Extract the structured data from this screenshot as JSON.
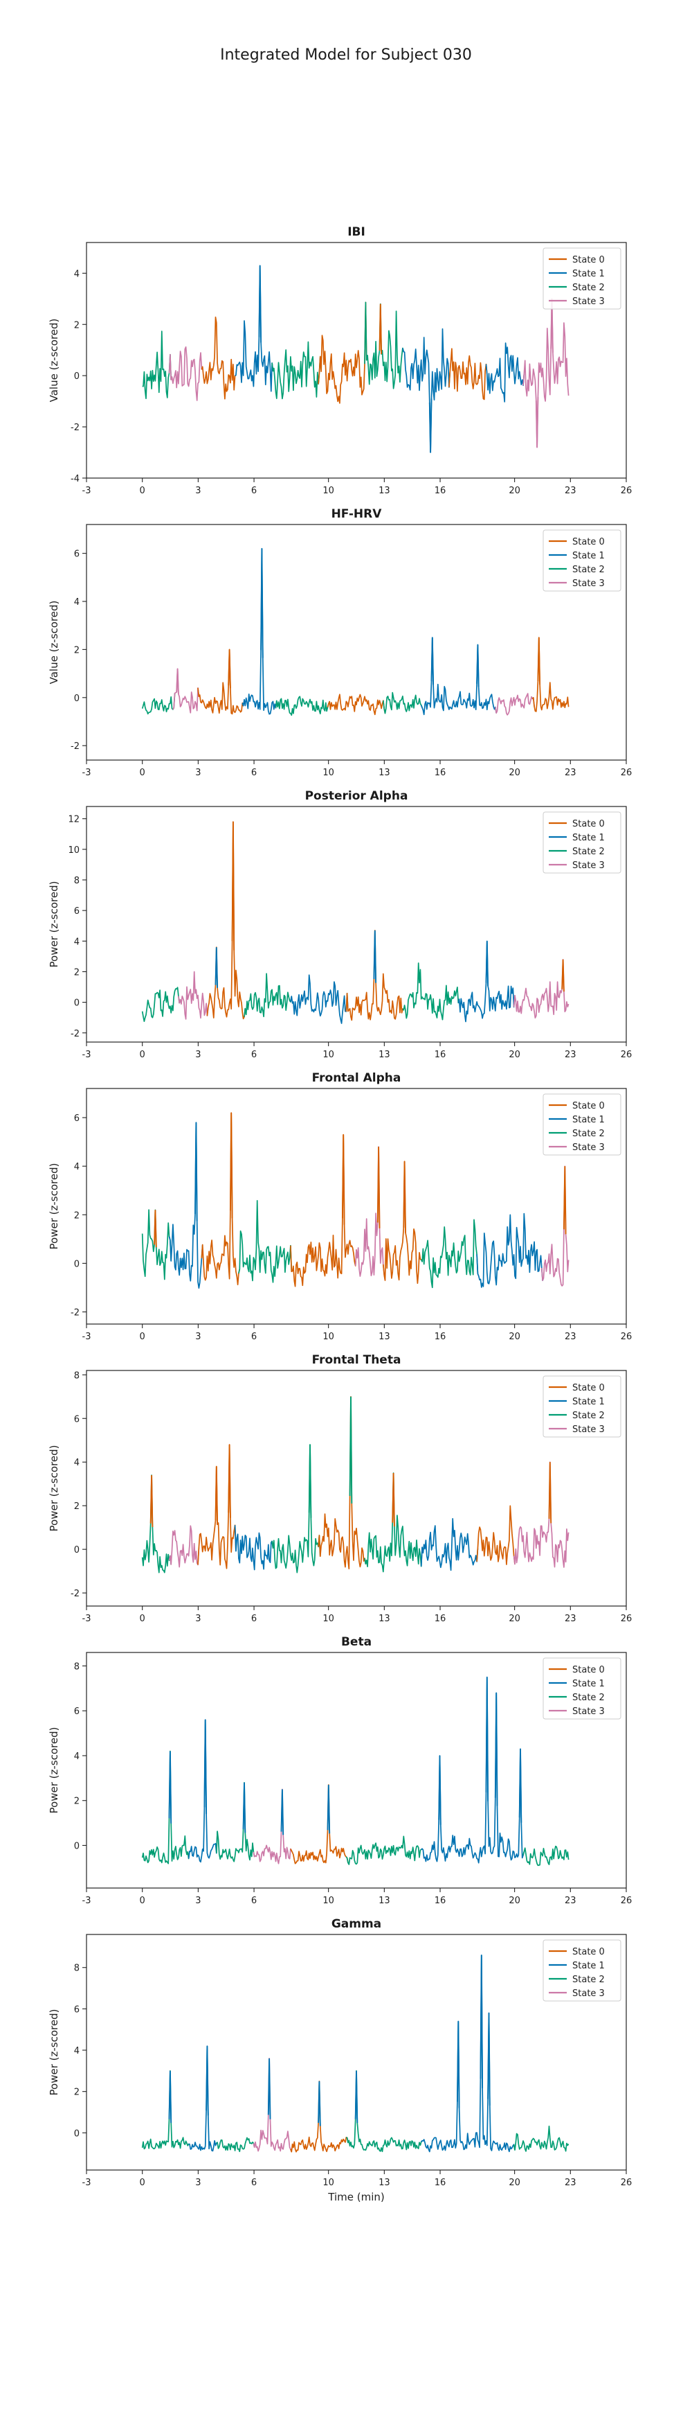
{
  "figure_title": "Integrated Model for Subject 030",
  "colors": {
    "State 0": "#d55e00",
    "State 1": "#0072b2",
    "State 2": "#009e73",
    "State 3": "#cc79a7"
  },
  "chart_data": [
    {
      "type": "line",
      "title": "IBI",
      "xlabel": "",
      "ylabel": "Value (z-scored)",
      "xlim": [
        -3,
        26
      ],
      "ylim": [
        -4,
        5.2
      ],
      "xticks": [
        -3,
        0,
        3,
        6,
        10,
        13,
        16,
        20,
        23,
        26
      ],
      "yticks": [
        -4,
        -2,
        0,
        2,
        4
      ],
      "legend": "top-right",
      "series_names": [
        "State 0",
        "State 1",
        "State 2",
        "State 3"
      ],
      "x_range": [
        0,
        22.9
      ],
      "base_amp": 0.9,
      "baseline": 0.0,
      "seed": 11,
      "peaks": [
        {
          "x": 6.3,
          "y": 4.3,
          "state": "State 1"
        },
        {
          "x": 15.5,
          "y": -3.0,
          "state": "State 1"
        },
        {
          "x": 12.8,
          "y": 2.8,
          "state": "State 0"
        },
        {
          "x": 21.2,
          "y": -2.8,
          "state": "State 3"
        },
        {
          "x": 22.0,
          "y": 3.0,
          "state": "State 3"
        }
      ],
      "segments": [
        {
          "x": [
            0,
            1.5
          ],
          "state": "State 2"
        },
        {
          "x": [
            1.5,
            3.2
          ],
          "state": "State 3"
        },
        {
          "x": [
            3.2,
            5.0
          ],
          "state": "State 0"
        },
        {
          "x": [
            5.0,
            7.0
          ],
          "state": "State 1"
        },
        {
          "x": [
            7.0,
            9.5
          ],
          "state": "State 2"
        },
        {
          "x": [
            9.5,
            12.0
          ],
          "state": "State 0"
        },
        {
          "x": [
            12.0,
            14.0
          ],
          "state": "State 2"
        },
        {
          "x": [
            14.0,
            16.5
          ],
          "state": "State 1"
        },
        {
          "x": [
            16.5,
            18.5
          ],
          "state": "State 0"
        },
        {
          "x": [
            18.5,
            20.5
          ],
          "state": "State 1"
        },
        {
          "x": [
            20.5,
            22.9
          ],
          "state": "State 3"
        }
      ]
    },
    {
      "type": "line",
      "title": "HF-HRV",
      "xlabel": "",
      "ylabel": "Value (z-scored)",
      "xlim": [
        -3,
        26
      ],
      "ylim": [
        -2.6,
        7.2
      ],
      "xticks": [
        -3,
        0,
        3,
        6,
        10,
        13,
        16,
        20,
        23,
        26
      ],
      "yticks": [
        -2,
        0,
        2,
        4,
        6
      ],
      "legend": "top-right",
      "series_names": [
        "State 0",
        "State 1",
        "State 2",
        "State 3"
      ],
      "x_range": [
        0,
        22.9
      ],
      "base_amp": 0.35,
      "baseline": -0.3,
      "seed": 23,
      "peaks": [
        {
          "x": 6.4,
          "y": 6.2,
          "state": "State 1"
        },
        {
          "x": 4.7,
          "y": 2.0,
          "state": "State 0"
        },
        {
          "x": 15.6,
          "y": 2.5,
          "state": "State 1"
        },
        {
          "x": 18.0,
          "y": 2.2,
          "state": "State 1"
        },
        {
          "x": 21.3,
          "y": 2.5,
          "state": "State 0"
        },
        {
          "x": 1.9,
          "y": 1.2,
          "state": "State 3"
        }
      ],
      "segments": [
        {
          "x": [
            0,
            1.7
          ],
          "state": "State 2"
        },
        {
          "x": [
            1.7,
            3.0
          ],
          "state": "State 3"
        },
        {
          "x": [
            3.0,
            5.4
          ],
          "state": "State 0"
        },
        {
          "x": [
            5.4,
            7.2
          ],
          "state": "State 1"
        },
        {
          "x": [
            7.2,
            10.0
          ],
          "state": "State 2"
        },
        {
          "x": [
            10.0,
            13.0
          ],
          "state": "State 0"
        },
        {
          "x": [
            13.0,
            15.0
          ],
          "state": "State 2"
        },
        {
          "x": [
            15.0,
            19.0
          ],
          "state": "State 1"
        },
        {
          "x": [
            19.0,
            21.0
          ],
          "state": "State 3"
        },
        {
          "x": [
            21.0,
            22.9
          ],
          "state": "State 0"
        }
      ]
    },
    {
      "type": "line",
      "title": "Posterior Alpha",
      "xlabel": "",
      "ylabel": "Power (z-scored)",
      "xlim": [
        -3,
        26
      ],
      "ylim": [
        -2.6,
        12.8
      ],
      "xticks": [
        -3,
        0,
        3,
        6,
        10,
        13,
        16,
        20,
        23,
        26
      ],
      "yticks": [
        -2,
        0,
        2,
        4,
        6,
        8,
        10,
        12
      ],
      "legend": "top-right",
      "series_names": [
        "State 0",
        "State 1",
        "State 2",
        "State 3"
      ],
      "x_range": [
        0,
        22.9
      ],
      "base_amp": 0.9,
      "baseline": -0.2,
      "seed": 37,
      "peaks": [
        {
          "x": 4.9,
          "y": 11.8,
          "state": "State 0"
        },
        {
          "x": 4.0,
          "y": 3.6,
          "state": "State 1"
        },
        {
          "x": 12.5,
          "y": 4.7,
          "state": "State 1"
        },
        {
          "x": 18.5,
          "y": 4.0,
          "state": "State 1"
        },
        {
          "x": 22.6,
          "y": 2.8,
          "state": "State 0"
        }
      ],
      "segments": [
        {
          "x": [
            0,
            2.0
          ],
          "state": "State 2"
        },
        {
          "x": [
            2.0,
            3.5
          ],
          "state": "State 3"
        },
        {
          "x": [
            3.5,
            5.5
          ],
          "state": "State 0"
        },
        {
          "x": [
            5.5,
            8.0
          ],
          "state": "State 2"
        },
        {
          "x": [
            8.0,
            11.0
          ],
          "state": "State 1"
        },
        {
          "x": [
            11.0,
            14.0
          ],
          "state": "State 0"
        },
        {
          "x": [
            14.0,
            17.0
          ],
          "state": "State 2"
        },
        {
          "x": [
            17.0,
            20.0
          ],
          "state": "State 1"
        },
        {
          "x": [
            20.0,
            22.9
          ],
          "state": "State 3"
        }
      ]
    },
    {
      "type": "line",
      "title": "Frontal Alpha",
      "xlabel": "",
      "ylabel": "Power (z-scored)",
      "xlim": [
        -3,
        26
      ],
      "ylim": [
        -2.5,
        7.2
      ],
      "xticks": [
        -3,
        0,
        3,
        6,
        10,
        13,
        16,
        20,
        23,
        26
      ],
      "yticks": [
        -2,
        0,
        2,
        4,
        6
      ],
      "legend": "top-right",
      "series_names": [
        "State 0",
        "State 1",
        "State 2",
        "State 3"
      ],
      "x_range": [
        0,
        22.9
      ],
      "base_amp": 0.8,
      "baseline": 0.0,
      "seed": 41,
      "peaks": [
        {
          "x": 2.9,
          "y": 5.8,
          "state": "State 1"
        },
        {
          "x": 4.8,
          "y": 6.2,
          "state": "State 0"
        },
        {
          "x": 10.8,
          "y": 5.3,
          "state": "State 0"
        },
        {
          "x": 12.7,
          "y": 4.8,
          "state": "State 0"
        },
        {
          "x": 14.1,
          "y": 4.2,
          "state": "State 0"
        },
        {
          "x": 22.7,
          "y": 4.0,
          "state": "State 0"
        },
        {
          "x": 0.7,
          "y": 2.2,
          "state": "State 0"
        }
      ],
      "segments": [
        {
          "x": [
            0,
            1.5
          ],
          "state": "State 2"
        },
        {
          "x": [
            1.5,
            3.2
          ],
          "state": "State 1"
        },
        {
          "x": [
            3.2,
            5.2
          ],
          "state": "State 0"
        },
        {
          "x": [
            5.2,
            8.0
          ],
          "state": "State 2"
        },
        {
          "x": [
            8.0,
            11.5
          ],
          "state": "State 0"
        },
        {
          "x": [
            11.5,
            13.0
          ],
          "state": "State 3"
        },
        {
          "x": [
            13.0,
            15.0
          ],
          "state": "State 0"
        },
        {
          "x": [
            15.0,
            18.0
          ],
          "state": "State 2"
        },
        {
          "x": [
            18.0,
            21.5
          ],
          "state": "State 1"
        },
        {
          "x": [
            21.5,
            22.9
          ],
          "state": "State 3"
        }
      ]
    },
    {
      "type": "line",
      "title": "Frontal Theta",
      "xlabel": "",
      "ylabel": "Power (z-scored)",
      "xlim": [
        -3,
        26
      ],
      "ylim": [
        -2.6,
        8.2
      ],
      "xticks": [
        -3,
        0,
        3,
        6,
        10,
        13,
        16,
        20,
        23,
        26
      ],
      "yticks": [
        -2,
        0,
        2,
        4,
        6,
        8
      ],
      "legend": "top-right",
      "series_names": [
        "State 0",
        "State 1",
        "State 2",
        "State 3"
      ],
      "x_range": [
        0,
        22.9
      ],
      "base_amp": 0.85,
      "baseline": 0.0,
      "seed": 53,
      "peaks": [
        {
          "x": 11.2,
          "y": 7.0,
          "state": "State 2"
        },
        {
          "x": 4.7,
          "y": 4.8,
          "state": "State 0"
        },
        {
          "x": 9.0,
          "y": 4.8,
          "state": "State 2"
        },
        {
          "x": 0.5,
          "y": 3.4,
          "state": "State 0"
        },
        {
          "x": 13.5,
          "y": 3.5,
          "state": "State 0"
        },
        {
          "x": 21.9,
          "y": 4.0,
          "state": "State 0"
        },
        {
          "x": 4.0,
          "y": 3.8,
          "state": "State 0"
        }
      ],
      "segments": [
        {
          "x": [
            0,
            1.5
          ],
          "state": "State 2"
        },
        {
          "x": [
            1.5,
            3.0
          ],
          "state": "State 3"
        },
        {
          "x": [
            3.0,
            5.0
          ],
          "state": "State 0"
        },
        {
          "x": [
            5.0,
            7.0
          ],
          "state": "State 1"
        },
        {
          "x": [
            7.0,
            9.5
          ],
          "state": "State 2"
        },
        {
          "x": [
            9.5,
            12.0
          ],
          "state": "State 0"
        },
        {
          "x": [
            12.0,
            15.0
          ],
          "state": "State 2"
        },
        {
          "x": [
            15.0,
            18.0
          ],
          "state": "State 1"
        },
        {
          "x": [
            18.0,
            20.0
          ],
          "state": "State 0"
        },
        {
          "x": [
            20.0,
            22.9
          ],
          "state": "State 3"
        }
      ]
    },
    {
      "type": "line",
      "title": "Beta",
      "xlabel": "",
      "ylabel": "Power (z-scored)",
      "xlim": [
        -3,
        26
      ],
      "ylim": [
        -1.9,
        8.6
      ],
      "xticks": [
        -3,
        0,
        3,
        6,
        10,
        13,
        16,
        20,
        23,
        26
      ],
      "yticks": [
        0,
        2,
        4,
        6,
        8
      ],
      "legend": "top-right",
      "series_names": [
        "State 0",
        "State 1",
        "State 2",
        "State 3"
      ],
      "x_range": [
        0,
        22.9
      ],
      "base_amp": 0.35,
      "baseline": -0.4,
      "seed": 67,
      "peaks": [
        {
          "x": 18.5,
          "y": 7.5,
          "state": "State 1"
        },
        {
          "x": 19.0,
          "y": 6.8,
          "state": "State 1"
        },
        {
          "x": 3.4,
          "y": 5.6,
          "state": "State 1"
        },
        {
          "x": 1.5,
          "y": 4.2,
          "state": "State 1"
        },
        {
          "x": 16.0,
          "y": 4.0,
          "state": "State 1"
        },
        {
          "x": 5.5,
          "y": 2.8,
          "state": "State 1"
        },
        {
          "x": 7.5,
          "y": 2.5,
          "state": "State 1"
        },
        {
          "x": 10.0,
          "y": 2.7,
          "state": "State 1"
        },
        {
          "x": 20.3,
          "y": 4.3,
          "state": "State 1"
        }
      ],
      "segments": [
        {
          "x": [
            0,
            2.5
          ],
          "state": "State 2"
        },
        {
          "x": [
            2.5,
            4.0
          ],
          "state": "State 1"
        },
        {
          "x": [
            4.0,
            6.0
          ],
          "state": "State 2"
        },
        {
          "x": [
            6.0,
            8.0
          ],
          "state": "State 3"
        },
        {
          "x": [
            8.0,
            11.0
          ],
          "state": "State 0"
        },
        {
          "x": [
            11.0,
            15.0
          ],
          "state": "State 2"
        },
        {
          "x": [
            15.0,
            20.5
          ],
          "state": "State 1"
        },
        {
          "x": [
            20.5,
            22.9
          ],
          "state": "State 2"
        }
      ]
    },
    {
      "type": "line",
      "title": "Gamma",
      "xlabel": "Time (min)",
      "ylabel": "Power (z-scored)",
      "xlim": [
        -3,
        26
      ],
      "ylim": [
        -1.8,
        9.6
      ],
      "xticks": [
        -3,
        0,
        3,
        6,
        10,
        13,
        16,
        20,
        23,
        26
      ],
      "yticks": [
        0,
        2,
        4,
        6,
        8
      ],
      "legend": "top-right",
      "series_names": [
        "State 0",
        "State 1",
        "State 2",
        "State 3"
      ],
      "x_range": [
        0,
        22.9
      ],
      "base_amp": 0.3,
      "baseline": -0.6,
      "seed": 79,
      "peaks": [
        {
          "x": 18.2,
          "y": 8.6,
          "state": "State 1"
        },
        {
          "x": 18.6,
          "y": 5.8,
          "state": "State 1"
        },
        {
          "x": 17.0,
          "y": 5.4,
          "state": "State 1"
        },
        {
          "x": 3.5,
          "y": 4.2,
          "state": "State 1"
        },
        {
          "x": 1.5,
          "y": 3.0,
          "state": "State 1"
        },
        {
          "x": 6.8,
          "y": 3.6,
          "state": "State 1"
        },
        {
          "x": 11.5,
          "y": 3.0,
          "state": "State 1"
        },
        {
          "x": 9.5,
          "y": 2.5,
          "state": "State 1"
        }
      ],
      "segments": [
        {
          "x": [
            0,
            2.5
          ],
          "state": "State 2"
        },
        {
          "x": [
            2.5,
            4.0
          ],
          "state": "State 1"
        },
        {
          "x": [
            4.0,
            6.0
          ],
          "state": "State 2"
        },
        {
          "x": [
            6.0,
            8.0
          ],
          "state": "State 3"
        },
        {
          "x": [
            8.0,
            11.0
          ],
          "state": "State 0"
        },
        {
          "x": [
            11.0,
            15.0
          ],
          "state": "State 2"
        },
        {
          "x": [
            15.0,
            20.0
          ],
          "state": "State 1"
        },
        {
          "x": [
            20.0,
            22.9
          ],
          "state": "State 2"
        }
      ]
    }
  ]
}
